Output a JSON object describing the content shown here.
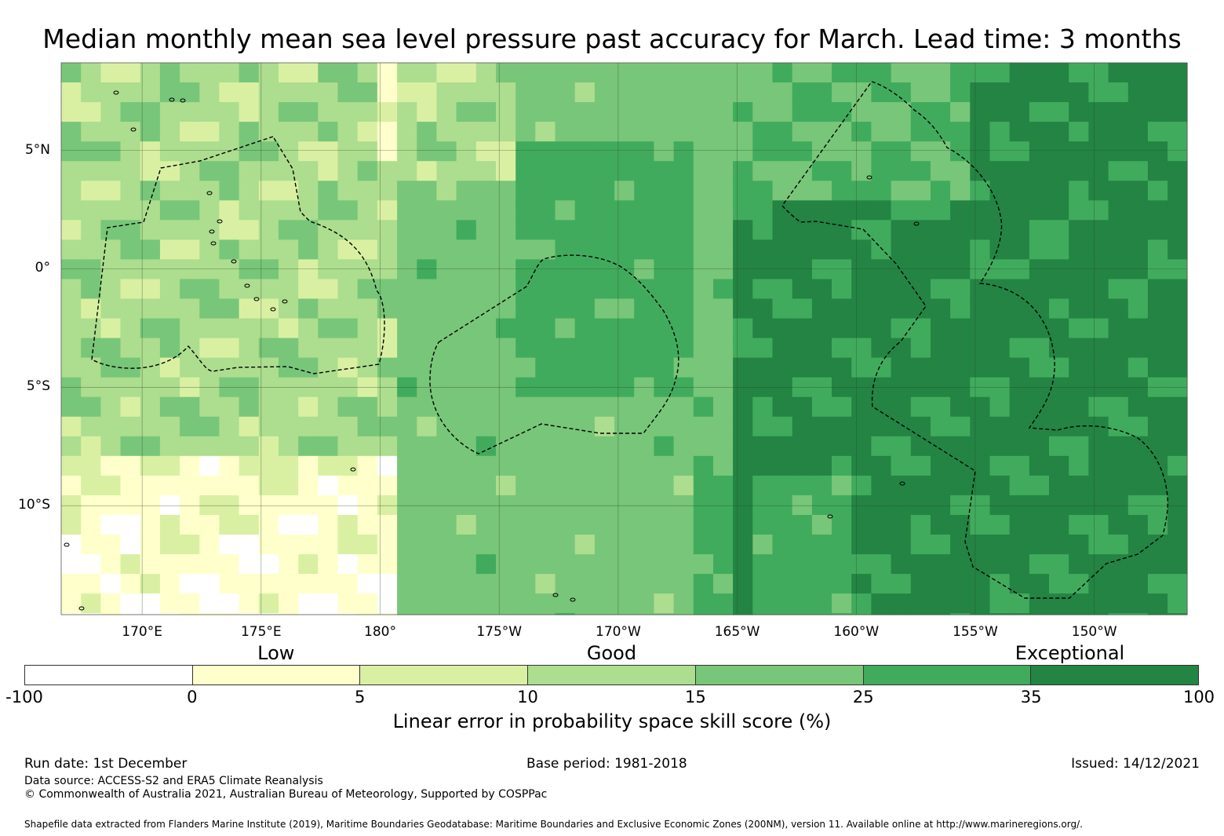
{
  "title": "Median monthly mean sea level pressure past accuracy for March. Lead time: 3 months",
  "map": {
    "lat_labels": [
      "5°N",
      "0°",
      "5°S",
      "10°S"
    ],
    "lon_labels": [
      "170°E",
      "175°E",
      "180°",
      "175°W",
      "170°W",
      "165°W",
      "160°W",
      "155°W",
      "150°W"
    ],
    "lat_values": [
      5,
      0,
      -5,
      -10
    ],
    "lon_values": [
      170,
      175,
      180,
      185,
      190,
      195,
      200,
      205,
      210
    ],
    "extent": {
      "lon_min": 166.6,
      "lon_max": 213.9,
      "lat_min": -14.6,
      "lat_max": 8.7
    },
    "category_labels": [
      {
        "text": "Low",
        "value": 2.5
      },
      {
        "text": "Good",
        "value": 12.5
      },
      {
        "text": "Exceptional",
        "value": 50
      }
    ]
  },
  "colorbar": {
    "ticks": [
      "-100",
      "0",
      "5",
      "10",
      "15",
      "25",
      "35",
      "100"
    ],
    "colors": [
      "#ffffff",
      "#ffffcc",
      "#d9f0a3",
      "#addd8e",
      "#78c679",
      "#41ab5d",
      "#238443"
    ],
    "label": "Linear error in probability space skill score (%)"
  },
  "footer": {
    "run_date": "Run date: 1st December",
    "base_period": "Base period: 1981-2018",
    "issued": "Issued: 14/12/2021",
    "data_source": "Data source: ACCESS-S2 and ERA5 Climate Reanalysis",
    "copyright": "© Commonwealth of Australia 2021, Australian Bureau of Meteorology, Supported by COSPPac",
    "shapefile": "Shapefile data extracted from Flanders Marine Institute (2019), Maritime Boundaries Geodatabase: Maritime Boundaries and Exclusive Economic Zones (200NM), version 11. Available online at http://www.marineregions.org/."
  }
}
